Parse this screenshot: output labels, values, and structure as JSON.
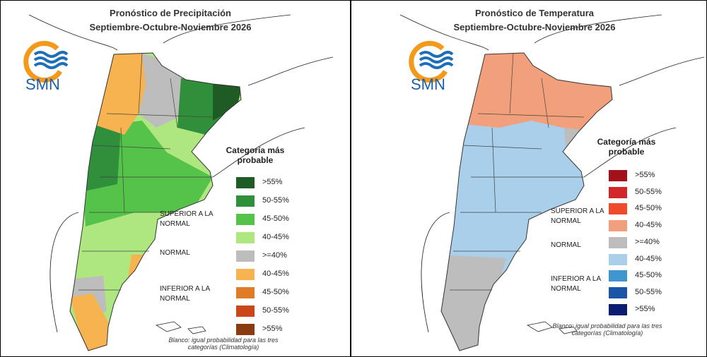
{
  "panels": [
    {
      "title": "Pronóstico de Precipitación",
      "subtitle": "Septiembre-Octubre-Noviembre 2026",
      "logo": "SMN",
      "legend": {
        "title": "Categoría más probable",
        "groups": [
          "SUPERIOR A LA NORMAL",
          "NORMAL",
          "INFERIOR A LA NORMAL"
        ],
        "items": [
          {
            "label": ">55%",
            "color": "#1f5b24"
          },
          {
            "label": "50-55%",
            "color": "#2f8f3a"
          },
          {
            "label": "45-50%",
            "color": "#55c24a"
          },
          {
            "label": "40-45%",
            "color": "#aee77f"
          },
          {
            "label": ">=40%",
            "color": "#bdbdbd"
          },
          {
            "label": "40-45%",
            "color": "#f6b34f"
          },
          {
            "label": "45-50%",
            "color": "#e07b27"
          },
          {
            "label": "50-55%",
            "color": "#c9471a"
          },
          {
            "label": ">55%",
            "color": "#8a3b12"
          }
        ]
      },
      "note": "Blanco: igual probabilidad para las tres categorías (Climatología)"
    },
    {
      "title": "Pronóstico de Temperatura",
      "subtitle": "Septiembre-Octubre-Noviembre 2026",
      "logo": "SMN",
      "legend": {
        "title": "Categoría más probable",
        "groups": [
          "SUPERIOR A LA NORMAL",
          "NORMAL",
          "INFERIOR A LA NORMAL"
        ],
        "items": [
          {
            "label": ">55%",
            "color": "#a3121a"
          },
          {
            "label": "50-55%",
            "color": "#d3262a"
          },
          {
            "label": "45-50%",
            "color": "#ee4a2c"
          },
          {
            "label": "40-45%",
            "color": "#f2a07c"
          },
          {
            "label": ">=40%",
            "color": "#bdbdbd"
          },
          {
            "label": "40-45%",
            "color": "#a9cfea"
          },
          {
            "label": "45-50%",
            "color": "#3e95cf"
          },
          {
            "label": "50-55%",
            "color": "#1b55a8"
          },
          {
            "label": ">55%",
            "color": "#0b1d73"
          }
        ]
      },
      "note": "Blanco: igual probabilidad para las tres categorías (Climatología)"
    }
  ]
}
